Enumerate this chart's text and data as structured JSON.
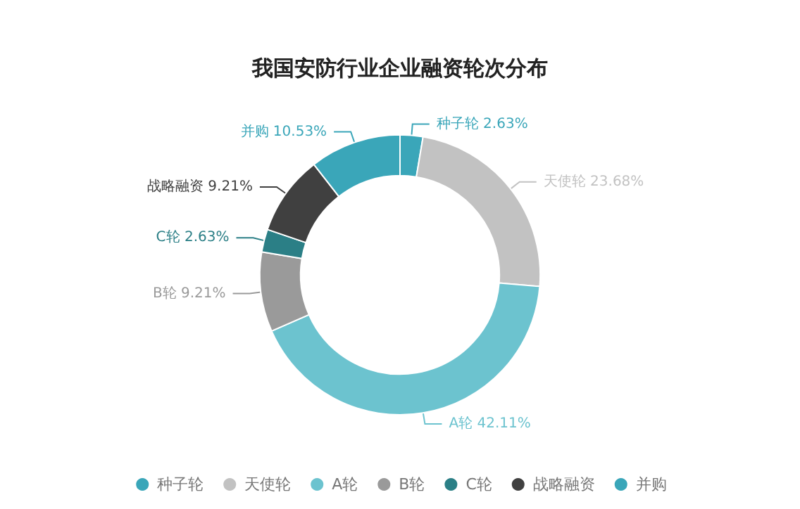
{
  "chart_data": {
    "type": "donut",
    "title": "我国安防行业企业融资轮次分布",
    "categories": [
      "种子轮",
      "天使轮",
      "A轮",
      "B轮",
      "C轮",
      "战略融资",
      "并购"
    ],
    "values": [
      2.63,
      23.68,
      42.11,
      9.21,
      2.63,
      9.21,
      10.53
    ],
    "value_labels": [
      "2.63%",
      "23.68%",
      "42.11%",
      "9.21%",
      "2.63%",
      "9.21%",
      "10.53%"
    ],
    "colors": [
      "#3aa6b9",
      "#c2c2c2",
      "#6cc3cf",
      "#9a9a9a",
      "#2b7f86",
      "#404040",
      "#3aa6b9"
    ],
    "legend": "bottom"
  }
}
